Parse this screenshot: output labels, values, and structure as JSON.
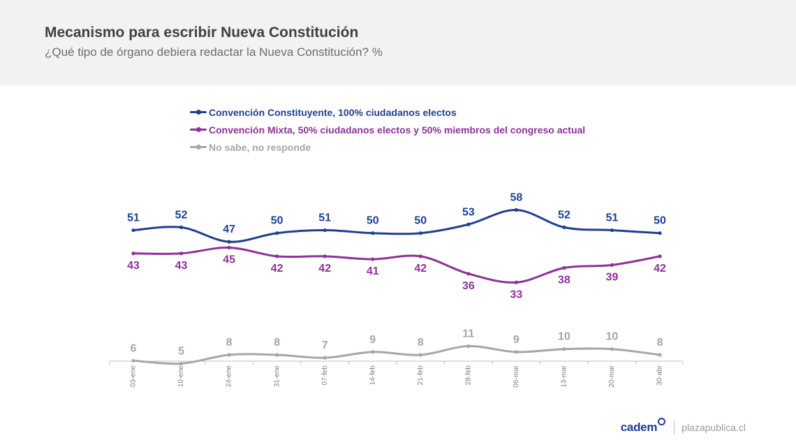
{
  "header": {
    "title": "Mecanismo para escribir Nueva Constitución",
    "subtitle": "¿Qué tipo de órgano debiera redactar la Nueva Constitución? %"
  },
  "footer": {
    "brand": "cadem",
    "site": "plazapublica.cl"
  },
  "chart_data": {
    "type": "line",
    "title": "Mecanismo para escribir Nueva Constitución",
    "subtitle": "¿Qué tipo de órgano debiera redactar la Nueva Constitución? %",
    "categories": [
      "03-ene",
      "10-ene",
      "24-ene",
      "31-ene",
      "07-feb",
      "14-feb",
      "21-feb",
      "28-feb",
      "06-mar",
      "13-mar",
      "20-mar",
      "30-abr"
    ],
    "series": [
      {
        "name": "Convención Constituyente, 100% ciudadanos electos",
        "color": "#1f3f93",
        "label_position": "above",
        "values": [
          51,
          52,
          47,
          50,
          51,
          50,
          50,
          53,
          58,
          52,
          51,
          50
        ]
      },
      {
        "name": "Convención Mixta, 50% ciudadanos electos y 50% miembros del congreso actual",
        "color": "#8e3199",
        "label_position": "below",
        "values": [
          43,
          43,
          45,
          42,
          42,
          41,
          42,
          36,
          33,
          38,
          39,
          42
        ]
      },
      {
        "name": "No sabe, no responde",
        "color": "#a6a6a6",
        "label_position": "above",
        "values": [
          6,
          5,
          8,
          8,
          7,
          9,
          8,
          11,
          9,
          10,
          10,
          8
        ]
      }
    ],
    "legend_position": "top-left",
    "grid": false,
    "smooth": true,
    "data_labels": true,
    "xlabel": "",
    "ylabel": ""
  }
}
